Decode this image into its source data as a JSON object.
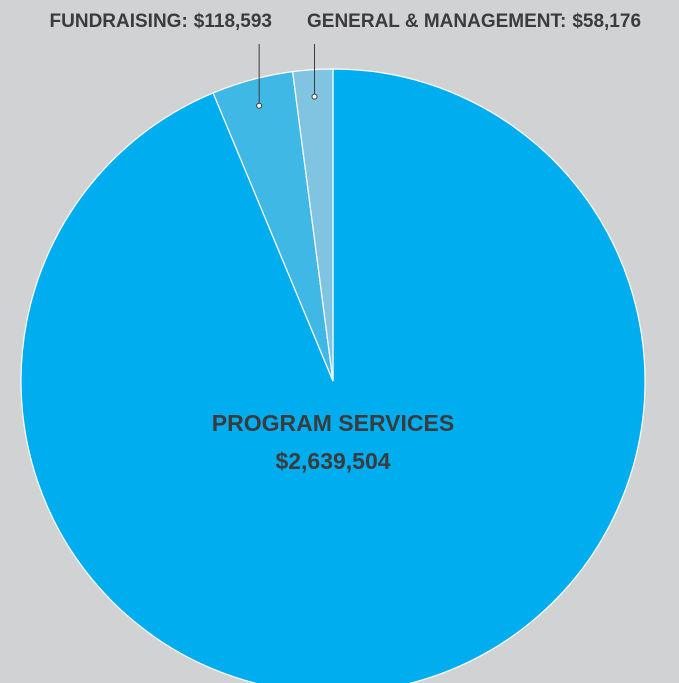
{
  "chart_data": {
    "type": "pie",
    "categories": [
      "PROGRAM SERVICES",
      "FUNDRAISING:",
      "GENERAL & MANAGEMENT:"
    ],
    "values": [
      2639504,
      118593,
      58176
    ],
    "value_labels": [
      "$2,639,504",
      "$118,593",
      "$58,176"
    ],
    "colors": [
      "#00aeef",
      "#3fb8e6",
      "#80c4e2"
    ]
  }
}
